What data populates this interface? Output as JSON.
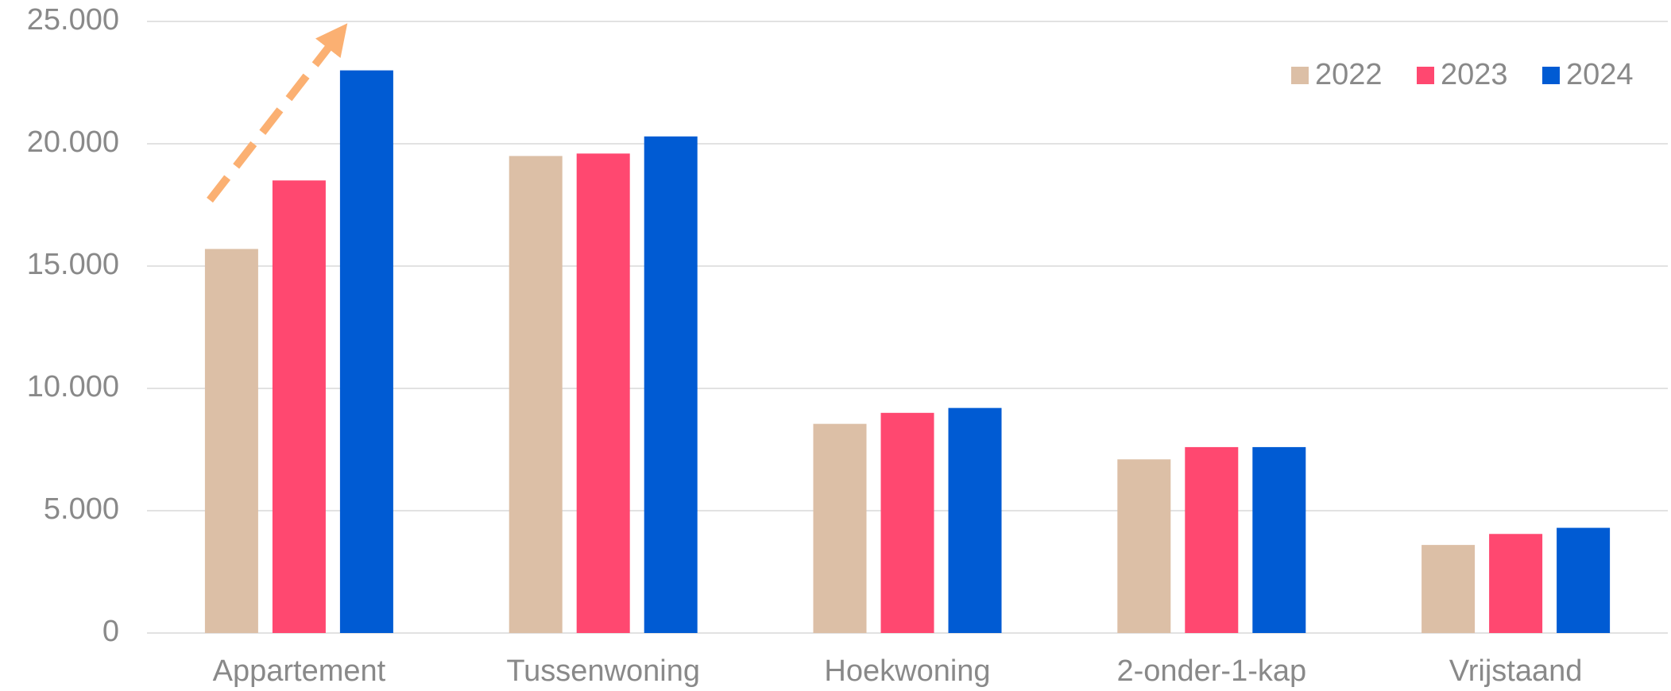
{
  "chart_data": {
    "type": "bar",
    "categories": [
      "Appartement",
      "Tussenwoning",
      "Hoekwoning",
      "2-onder-1-kap",
      "Vrijstaand"
    ],
    "series": [
      {
        "name": "2022",
        "color": "#dcbfa6",
        "values": [
          15700,
          19500,
          8550,
          7100,
          3600
        ]
      },
      {
        "name": "2023",
        "color": "#ff4870",
        "values": [
          18500,
          19600,
          9000,
          7600,
          4050
        ]
      },
      {
        "name": "2024",
        "color": "#005bd3",
        "values": [
          23000,
          20300,
          9200,
          7600,
          4300
        ]
      }
    ],
    "ylim": [
      0,
      25000
    ],
    "yticks": [
      0,
      {
        "value": 5000,
        "label": "5.000"
      },
      {
        "value": 10000,
        "label": "10.000"
      },
      {
        "value": 15000,
        "label": "15.000"
      },
      {
        "value": 20000,
        "label": "20.000"
      },
      {
        "value": 25000,
        "label": "25.000"
      }
    ],
    "grid": true,
    "legend": "top-right"
  }
}
